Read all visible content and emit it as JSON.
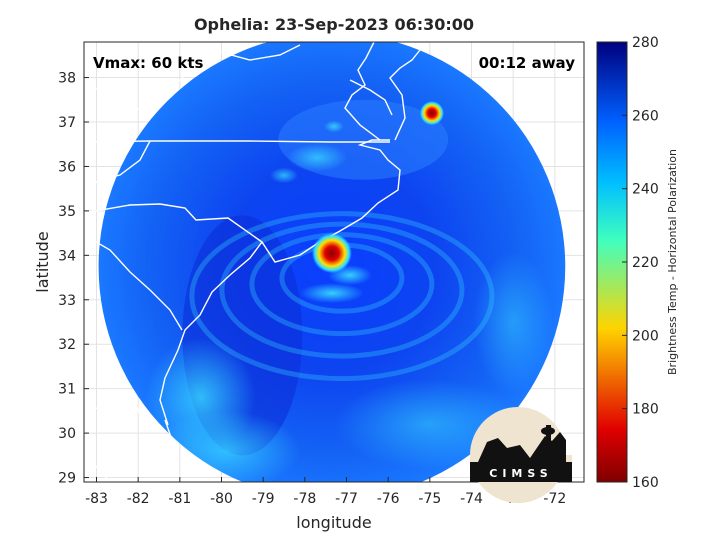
{
  "chart_data": {
    "type": "heatmap",
    "title": "Ophelia: 23-Sep-2023 06:30:00",
    "xlabel": "longitude",
    "ylabel": "latitude",
    "xlim": [
      -83.3,
      -71.3
    ],
    "ylim": [
      28.9,
      38.8
    ],
    "xticks": [
      -83,
      -82,
      -81,
      -80,
      -79,
      -78,
      -77,
      -76,
      -75,
      -74,
      -73,
      -72
    ],
    "yticks": [
      29,
      30,
      31,
      32,
      33,
      34,
      35,
      36,
      37,
      38
    ],
    "annotations": {
      "vmax": "Vmax: 60 kts",
      "time_away": "00:12 away"
    },
    "colorbar": {
      "label": "Brightness Temp - Horizontal Polarization",
      "min": 160,
      "max": 280,
      "ticks": [
        160,
        180,
        200,
        220,
        240,
        260,
        280
      ],
      "colormap": "jet"
    },
    "swath": {
      "center_lon": -77.35,
      "center_lat": 33.75,
      "radius_deg_lon": 5.6
    },
    "storm_center": {
      "lon": -77.35,
      "lat": 34.05,
      "min_tb": 165
    },
    "hot_spots": [
      {
        "lon": -77.35,
        "lat": 34.05,
        "tb": 165
      },
      {
        "lon": -74.95,
        "lat": 37.2,
        "tb": 170
      }
    ],
    "logo_text": "CIMSS",
    "grid": true
  }
}
